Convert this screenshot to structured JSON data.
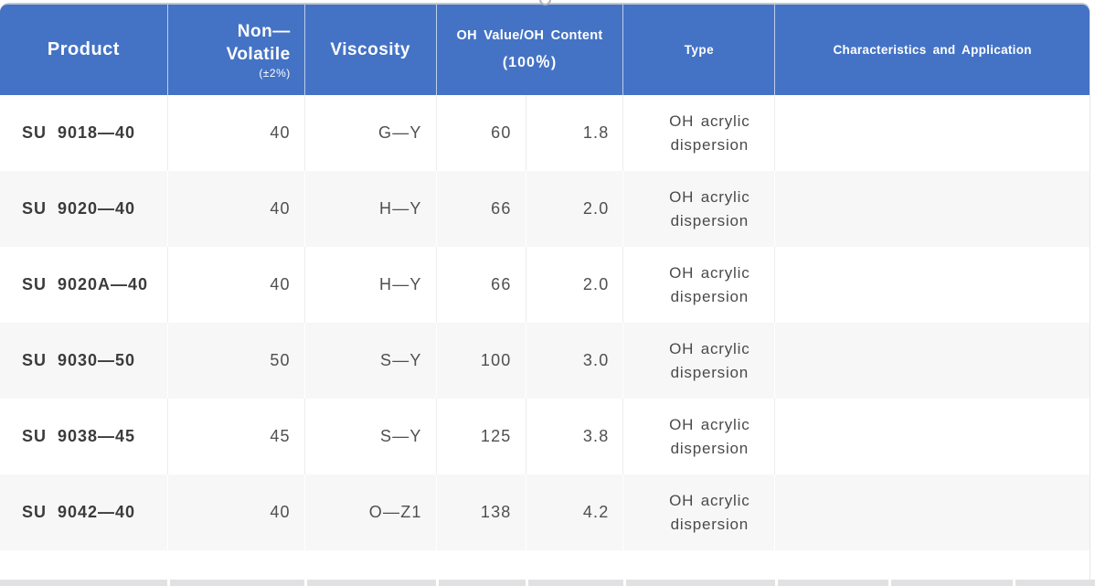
{
  "colors": {
    "header_bg": "#4473C5",
    "header_text": "#FFFFFF",
    "stripe_bg": "#F7F7F8",
    "body_text": "#4F4F4F",
    "next_band": "#E1E1E4"
  },
  "editor": {
    "resize_handle_position": "top-center"
  },
  "table": {
    "header": {
      "product": "Product",
      "non_volatile": [
        "Non—",
        "Volatile",
        "(±2%)"
      ],
      "viscosity": "Viscosity",
      "oh": [
        "OH Value/OH Content",
        "(100％)"
      ],
      "type": "Type",
      "characteristics": "Characteristics and Application"
    },
    "rows": [
      {
        "product": "SU 9018—40",
        "non_volatile": "40",
        "viscosity": "G—Y",
        "oh_value": "60",
        "oh_content": "1.8",
        "type": "OH acrylic dispersion",
        "characteristics": ""
      },
      {
        "product": "SU 9020—40",
        "non_volatile": "40",
        "viscosity": "H—Y",
        "oh_value": "66",
        "oh_content": "2.0",
        "type": "OH acrylic dispersion",
        "characteristics": ""
      },
      {
        "product": "SU 9020A—40",
        "non_volatile": "40",
        "viscosity": "H—Y",
        "oh_value": "66",
        "oh_content": "2.0",
        "type": "OH acrylic dispersion",
        "characteristics": ""
      },
      {
        "product": "SU 9030—50",
        "non_volatile": "50",
        "viscosity": "S—Y",
        "oh_value": "100",
        "oh_content": "3.0",
        "type": "OH acrylic dispersion",
        "characteristics": ""
      },
      {
        "product": "SU 9038—45",
        "non_volatile": "45",
        "viscosity": "S—Y",
        "oh_value": "125",
        "oh_content": "3.8",
        "type": "OH acrylic dispersion",
        "characteristics": ""
      },
      {
        "product": "SU 9042—40",
        "non_volatile": "40",
        "viscosity": "O—Z1",
        "oh_value": "138",
        "oh_content": "4.2",
        "type": "OH acrylic dispersion",
        "characteristics": ""
      }
    ]
  }
}
